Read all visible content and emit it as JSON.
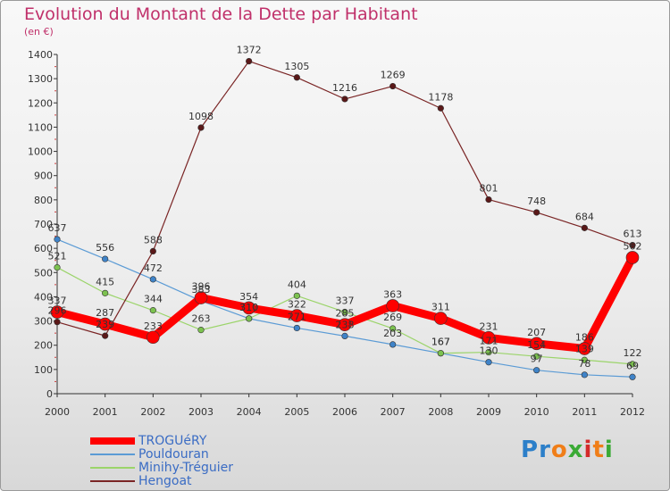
{
  "title": "Evolution du Montant de la Dette par Habitant",
  "subtitle": "(en €)",
  "logo": {
    "letters": [
      "P",
      "r",
      "o",
      "x",
      "i",
      "t",
      "i"
    ],
    "colors": [
      "#2c7fc9",
      "#2c7fc9",
      "#f07e18",
      "#3aaa35",
      "#d42a2a",
      "#f07e18",
      "#3aaa35"
    ]
  },
  "chart_data": {
    "type": "line",
    "x": [
      "2000",
      "2001",
      "2002",
      "2003",
      "2004",
      "2005",
      "2006",
      "2007",
      "2008",
      "2009",
      "2010",
      "2011",
      "2012"
    ],
    "ylim": [
      0,
      1400
    ],
    "yticks": [
      0,
      100,
      200,
      300,
      400,
      500,
      600,
      700,
      800,
      900,
      1000,
      1100,
      1200,
      1300,
      1400
    ],
    "grid": false,
    "legend_position": "bottom-left",
    "series": [
      {
        "name": "TROGUéRY",
        "color": "#ff0000",
        "values": [
          337,
          287,
          233,
          396,
          354,
          322,
          285,
          363,
          311,
          231,
          207,
          186,
          562
        ]
      },
      {
        "name": "Pouldouran",
        "color": "#5b9bd5",
        "values": [
          637,
          556,
          472,
          383,
          310,
          271,
          238,
          203,
          167,
          130,
          97,
          78,
          69
        ]
      },
      {
        "name": "Minihy-Tréguier",
        "color": "#9bd46a",
        "values": [
          521,
          415,
          344,
          263,
          310,
          404,
          337,
          269,
          167,
          171,
          154,
          139,
          122
        ]
      },
      {
        "name": "Hengoat",
        "color": "#7a2525",
        "values": [
          296,
          239,
          588,
          1098,
          1372,
          1305,
          1216,
          1269,
          1178,
          801,
          748,
          684,
          613
        ]
      }
    ],
    "data_labels": [
      {
        "series": "TROGUéRY",
        "labels": [
          "337",
          "287",
          "233",
          "396",
          "354",
          "322",
          "285",
          "363",
          "311",
          "231",
          "207",
          "186",
          "562"
        ]
      },
      {
        "series": "Pouldouran",
        "labels": [
          "637",
          "556",
          "472",
          "383",
          "310",
          "271",
          "238",
          "203",
          "167",
          "130",
          "97",
          "78",
          "69"
        ]
      },
      {
        "series": "Minihy-Tréguier",
        "labels": [
          "521",
          "415",
          "344",
          "263",
          "310",
          "404",
          "337",
          "269",
          "167",
          "171",
          "154",
          "139",
          "122"
        ]
      },
      {
        "series": "Hengoat",
        "labels": [
          "296",
          "239",
          "588",
          "1098",
          "1372",
          "1305",
          "1216",
          "1269",
          "1178",
          "801",
          "748",
          "684",
          "613"
        ]
      }
    ]
  }
}
